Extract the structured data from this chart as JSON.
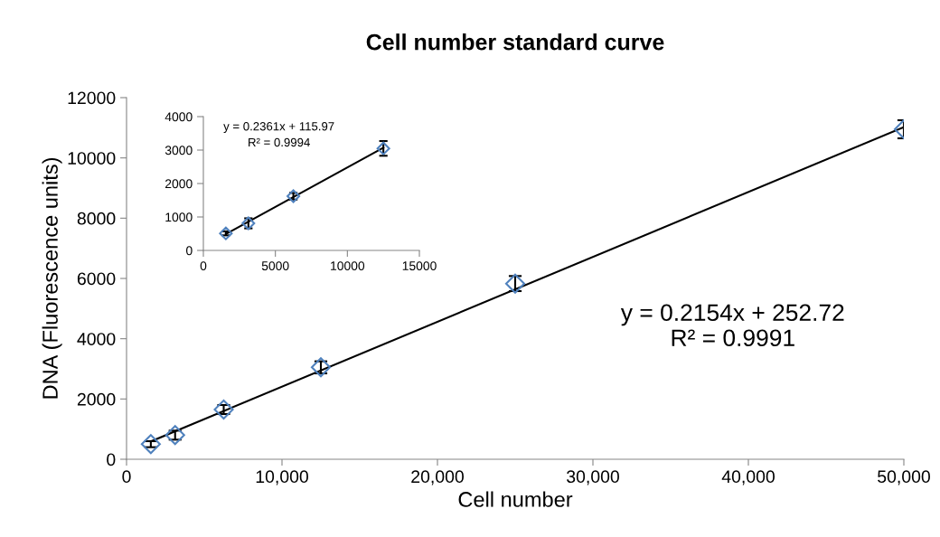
{
  "chart_data": [
    {
      "type": "scatter",
      "title": "Cell number standard curve",
      "xlabel": "Cell number",
      "ylabel": "DNA (Fluorescence units)",
      "xlim": [
        0,
        50000
      ],
      "xticks": [
        0,
        {
          "value": 10000,
          "label": "10,000"
        },
        {
          "value": 20000,
          "label": "20,000"
        },
        {
          "value": 30000,
          "label": "30,000"
        },
        {
          "value": 40000,
          "label": "40,000"
        },
        {
          "value": 50000,
          "label": "50,000"
        }
      ],
      "ylim": [
        0,
        12000
      ],
      "yticks": [
        0,
        2000,
        4000,
        6000,
        8000,
        10000,
        12000
      ],
      "grid": false,
      "legend": false,
      "annotations": [
        "y = 0.2154x + 252.72",
        "R² = 0.9991"
      ],
      "series": [
        {
          "marker": "diamond",
          "color": "#4f81bd",
          "x": [
            1562.5,
            3125,
            6250,
            12500,
            25000,
            50000
          ],
          "values": [
            500,
            800,
            1650,
            3050,
            5830,
            10950
          ],
          "errors": [
            100,
            150,
            150,
            200,
            250,
            300
          ]
        },
        {
          "type": "line",
          "color": "#000000",
          "x": [
            1562.5,
            50000
          ],
          "values": [
            590,
            11020
          ]
        }
      ]
    },
    {
      "type": "scatter",
      "xlim": [
        0,
        15000
      ],
      "xticks": [
        0,
        5000,
        10000,
        15000
      ],
      "ylim": [
        0,
        4000
      ],
      "yticks": [
        0,
        1000,
        2000,
        3000,
        4000
      ],
      "grid": false,
      "legend": false,
      "annotations": [
        "y = 0.2361x + 115.97",
        "R² = 0.9994"
      ],
      "series": [
        {
          "marker": "diamond",
          "color": "#4f81bd",
          "x": [
            1562.5,
            3125,
            6250,
            12500
          ],
          "values": [
            510,
            810,
            1620,
            3050
          ],
          "errors": [
            60,
            150,
            100,
            220
          ]
        },
        {
          "type": "line",
          "color": "#000000",
          "x": [
            1562.5,
            12500
          ],
          "values": [
            490,
            3070
          ]
        }
      ]
    }
  ]
}
